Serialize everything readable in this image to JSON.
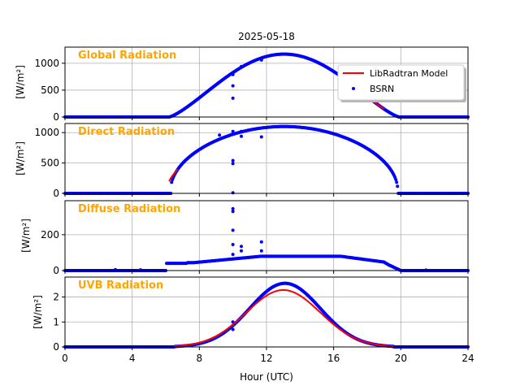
{
  "figure": {
    "title": "2025-05-18",
    "xlabel": "Hour (UTC)",
    "legend": {
      "placement": "top-right of first panel",
      "model_label": "LibRadtran Model",
      "obs_label": "BSRN"
    },
    "colors": {
      "model": "#ff0000",
      "obs": "#0000ff",
      "panel_label": "#ffa500",
      "grid": "#b0b0b0"
    }
  },
  "chart_data": [
    {
      "type": "line",
      "title": "Global Radiation",
      "ylabel": "[W/m²]",
      "xlim": [
        0,
        24
      ],
      "ylim": [
        0,
        1300
      ],
      "xticks": [
        0,
        4,
        8,
        12,
        16,
        20,
        24
      ],
      "yticks": [
        0,
        500,
        1000
      ],
      "grid": true,
      "obs": {
        "sunrise": 6.2,
        "sunset": 19.9,
        "noon": 13.05,
        "peak": 1170,
        "shape": "bell",
        "width": 6.85,
        "exponent": 1.3,
        "outliers": [
          [
            10.0,
            790
          ],
          [
            10.0,
            580
          ],
          [
            10.0,
            350
          ],
          [
            10.5,
            940
          ],
          [
            11.7,
            1060
          ]
        ]
      },
      "model": {
        "visible_from": 18.2,
        "visible_to": 19.0,
        "sunrise": 6.2,
        "sunset": 19.9,
        "noon": 13.05,
        "peak": 1170,
        "shape": "bell",
        "width": 6.85,
        "exponent": 1.3
      }
    },
    {
      "type": "line",
      "title": "Direct Radiation",
      "ylabel": "[W/m²]",
      "xlim": [
        0,
        24
      ],
      "ylim": [
        0,
        1150
      ],
      "xticks": [
        0,
        4,
        8,
        12,
        16,
        20,
        24
      ],
      "yticks": [
        0,
        500,
        1000
      ],
      "grid": true,
      "obs": {
        "sunrise": 6.3,
        "sunset": 19.85,
        "noon": 13.05,
        "peak": 1100,
        "shape": "plateau",
        "width": 6.78,
        "exponent": 0.45,
        "outliers": [
          [
            10.0,
            1020
          ],
          [
            10.0,
            540
          ],
          [
            10.0,
            490
          ],
          [
            10.0,
            10
          ],
          [
            10.5,
            940
          ],
          [
            10.5,
            1020
          ],
          [
            11.7,
            930
          ],
          [
            9.2,
            960
          ]
        ]
      },
      "model": {
        "visible_from": 6.2,
        "visible_to": 6.7,
        "sunrise": 6.0,
        "sunset": 20.1,
        "noon": 13.05,
        "peak": 1100,
        "shape": "plateau",
        "width": 7.05,
        "exponent": 0.55
      }
    },
    {
      "type": "line",
      "title": "Diffuse Radiation",
      "ylabel": "[W/m²]",
      "xlim": [
        0,
        24
      ],
      "ylim": [
        0,
        390
      ],
      "xticks": [
        0,
        4,
        8,
        12,
        16,
        20,
        24
      ],
      "yticks": [
        0,
        200
      ],
      "grid": true,
      "obs": {
        "sunrise": 6.0,
        "sunset": 20.0,
        "noon": 12.5,
        "peak": 80,
        "shape": "diffuse",
        "outliers": [
          [
            10.0,
            345
          ],
          [
            10.0,
            330
          ],
          [
            10.0,
            225
          ],
          [
            10.0,
            145
          ],
          [
            10.0,
            90
          ],
          [
            10.5,
            135
          ],
          [
            10.5,
            110
          ],
          [
            11.7,
            160
          ],
          [
            11.7,
            110
          ],
          [
            3.0,
            5
          ],
          [
            4.5,
            4
          ],
          [
            21.5,
            3
          ]
        ]
      },
      "model": {
        "visible_from": 0,
        "visible_to": 0,
        "sunrise": 6.0,
        "sunset": 20.0,
        "noon": 12.5,
        "peak": 80,
        "shape": "diffuse"
      }
    },
    {
      "type": "line",
      "title": "UVB Radiation",
      "ylabel": "[W/m²]",
      "xlim": [
        0,
        24
      ],
      "ylim": [
        0,
        2.8
      ],
      "xticks": [
        0,
        4,
        8,
        12,
        16,
        20,
        24
      ],
      "yticks": [
        0,
        1,
        2
      ],
      "grid": true,
      "obs": {
        "sunrise": 6.5,
        "sunset": 19.6,
        "noon": 13.1,
        "peak": 2.55,
        "shape": "gauss",
        "sigma": 2.1,
        "outliers": [
          [
            10.0,
            1.0
          ],
          [
            10.0,
            0.7
          ]
        ]
      },
      "model": {
        "visible_from": 6.5,
        "visible_to": 19.6,
        "sunrise": 6.5,
        "sunset": 19.6,
        "noon": 13.0,
        "peak": 2.28,
        "shape": "gauss",
        "sigma": 2.2
      }
    }
  ]
}
